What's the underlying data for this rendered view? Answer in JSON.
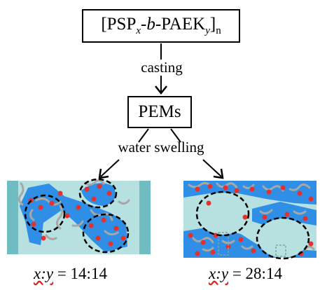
{
  "polymer": {
    "open_bracket": "[",
    "psp": "PSP",
    "x": "x",
    "dash1": "-",
    "b": "b",
    "dash2": "-",
    "paek": "PAEK",
    "y": "y",
    "close_bracket": "]",
    "n": "n"
  },
  "step1_label": "casting",
  "pems_label": "PEMs",
  "step2_label": "water swelling",
  "captions": {
    "left_prefix": "x:y",
    "left_value": " = 14:14",
    "right_prefix": "x:y",
    "right_value": " = 28:14"
  },
  "colors": {
    "matrix": "#b7e0e1",
    "domain": "#2f8fe6",
    "chain": "#a7a7a7",
    "ion": "#e53030",
    "frame": "#6fbcc2",
    "cluster_outline": "#000000"
  }
}
